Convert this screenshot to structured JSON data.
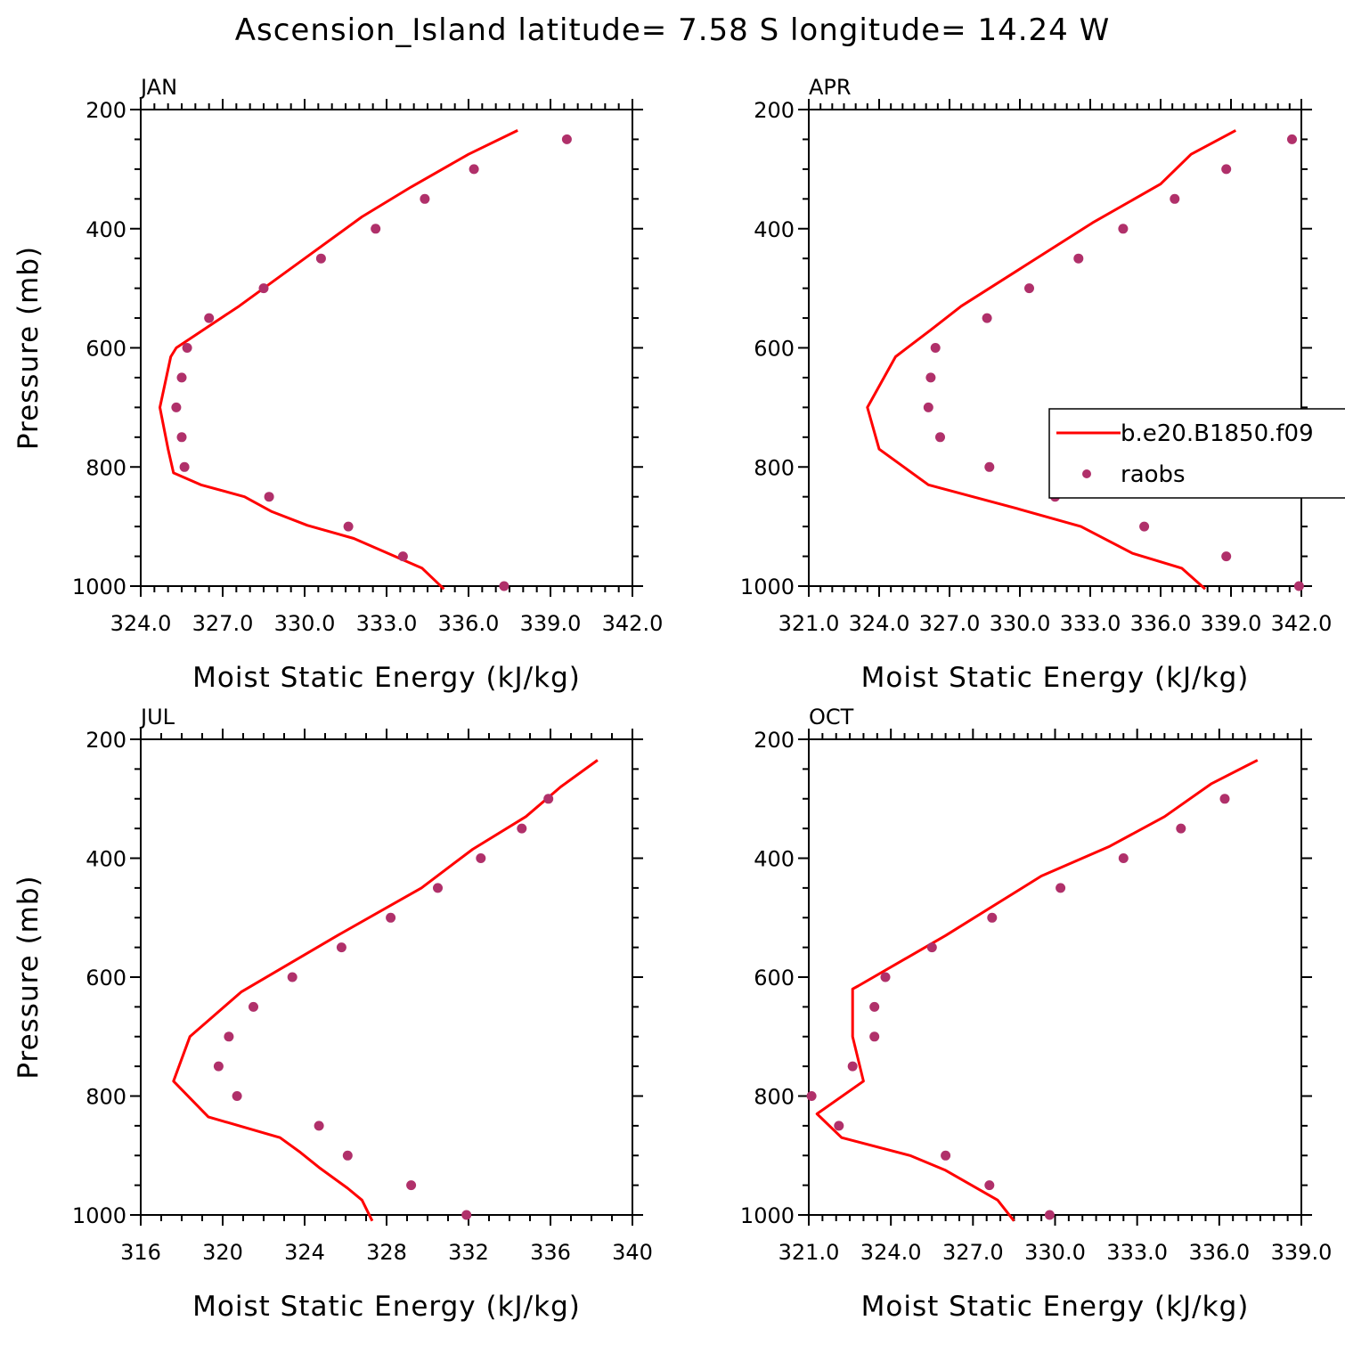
{
  "title": "Ascension_Island  latitude= 7.58 S longitude= 14.24 W",
  "colors": {
    "model": "#ff0000",
    "obs": "#b0306a"
  },
  "legend": {
    "model_label": "b.e20.B1850.f09",
    "obs_label": "raobs",
    "placement": "right of APR panel, overlapping"
  },
  "chart_data": [
    {
      "type": "line",
      "panel": "JAN",
      "xlabel": "Moist Static Energy (kJ/kg)",
      "ylabel": "Pressure (mb)",
      "xlim": [
        324,
        342
      ],
      "ylim": [
        1000,
        200
      ],
      "xticks": [
        "324.0",
        "327.0",
        "330.0",
        "333.0",
        "336.0",
        "339.0",
        "342.0"
      ],
      "yticks": [
        "200",
        "400",
        "600",
        "800",
        "1000"
      ],
      "series": [
        {
          "name": "b.e20.B1850.f09",
          "kind": "line",
          "x": [
            335.1,
            334.3,
            331.8,
            330.1,
            328.8,
            327.8,
            326.2,
            325.2,
            325.0,
            324.7,
            325.1,
            325.3,
            327.6,
            330.0,
            332.1,
            333.9,
            336.0,
            337.8
          ],
          "y": [
            1005,
            970,
            920,
            898,
            875,
            850,
            830,
            810,
            770,
            700,
            615,
            600,
            530,
            450,
            380,
            330,
            275,
            235
          ]
        },
        {
          "name": "raobs",
          "kind": "scatter",
          "x": [
            337.3,
            333.6,
            331.6,
            328.7,
            325.6,
            325.5,
            325.3,
            325.5,
            325.7,
            326.5,
            328.5,
            330.6,
            332.6,
            334.4,
            336.2,
            339.6
          ],
          "y": [
            1000,
            950,
            900,
            850,
            800,
            750,
            700,
            650,
            600,
            550,
            500,
            450,
            400,
            350,
            300,
            250
          ]
        }
      ]
    },
    {
      "type": "line",
      "panel": "APR",
      "xlabel": "Moist Static Energy (kJ/kg)",
      "ylabel": "",
      "xlim": [
        321,
        342
      ],
      "ylim": [
        1000,
        200
      ],
      "xticks": [
        "321.0",
        "324.0",
        "327.0",
        "330.0",
        "333.0",
        "336.0",
        "339.0",
        "342.0"
      ],
      "yticks": [
        "200",
        "400",
        "600",
        "800",
        "1000"
      ],
      "series": [
        {
          "name": "b.e20.B1850.f09",
          "kind": "line",
          "x": [
            337.9,
            336.9,
            334.8,
            332.6,
            329.9,
            328.0,
            326.1,
            324.0,
            323.5,
            324.7,
            326.2,
            327.5,
            330.3,
            333.1,
            336.0,
            337.3,
            339.2
          ],
          "y": [
            1005,
            970,
            945,
            900,
            870,
            850,
            830,
            770,
            700,
            615,
            570,
            530,
            460,
            390,
            325,
            275,
            235
          ]
        },
        {
          "name": "raobs",
          "kind": "scatter",
          "x": [
            341.9,
            338.8,
            335.3,
            331.5,
            328.7,
            326.6,
            326.1,
            326.2,
            326.4,
            328.6,
            330.4,
            332.5,
            334.4,
            336.6,
            338.8,
            341.6
          ],
          "y": [
            1000,
            950,
            900,
            850,
            800,
            750,
            700,
            650,
            600,
            550,
            500,
            450,
            400,
            350,
            300,
            250
          ]
        }
      ]
    },
    {
      "type": "line",
      "panel": "JUL",
      "xlabel": "Moist Static Energy (kJ/kg)",
      "ylabel": "Pressure (mb)",
      "xlim": [
        316,
        340
      ],
      "ylim": [
        1000,
        200
      ],
      "xticks": [
        "316",
        "320",
        "324",
        "328",
        "332",
        "336",
        "340"
      ],
      "yticks": [
        "200",
        "400",
        "600",
        "800",
        "1000"
      ],
      "series": [
        {
          "name": "b.e20.B1850.f09",
          "kind": "line",
          "x": [
            327.3,
            326.8,
            326.1,
            324.7,
            323.8,
            322.8,
            319.3,
            317.6,
            318.4,
            320.9,
            325.6,
            329.7,
            332.2,
            334.8,
            336.5,
            338.3
          ],
          "y": [
            1010,
            975,
            955,
            920,
            895,
            870,
            835,
            775,
            700,
            625,
            530,
            450,
            385,
            330,
            280,
            235
          ]
        },
        {
          "name": "raobs",
          "kind": "scatter",
          "x": [
            331.9,
            329.2,
            326.1,
            324.7,
            320.7,
            319.8,
            320.3,
            321.5,
            323.4,
            325.8,
            328.2,
            330.5,
            332.6,
            334.6,
            335.9
          ],
          "y": [
            1000,
            950,
            900,
            850,
            800,
            750,
            700,
            650,
            600,
            550,
            500,
            450,
            400,
            350,
            300
          ]
        }
      ]
    },
    {
      "type": "line",
      "panel": "OCT",
      "xlabel": "Moist Static Energy (kJ/kg)",
      "ylabel": "",
      "xlim": [
        321,
        339
      ],
      "ylim": [
        1000,
        200
      ],
      "xticks": [
        "321.0",
        "324.0",
        "327.0",
        "330.0",
        "333.0",
        "336.0",
        "339.0"
      ],
      "yticks": [
        "200",
        "400",
        "600",
        "800",
        "1000"
      ],
      "series": [
        {
          "name": "b.e20.B1850.f09",
          "kind": "line",
          "x": [
            328.5,
            327.9,
            326.0,
            324.7,
            322.2,
            321.3,
            323.0,
            322.6,
            322.6,
            322.8,
            326.0,
            329.5,
            332.0,
            334.0,
            335.7,
            337.4
          ],
          "y": [
            1010,
            975,
            925,
            900,
            870,
            830,
            775,
            700,
            620,
            615,
            530,
            430,
            380,
            330,
            275,
            235
          ]
        },
        {
          "name": "raobs",
          "kind": "scatter",
          "x": [
            329.8,
            327.6,
            326.0,
            322.1,
            321.1,
            322.6,
            323.4,
            323.4,
            323.8,
            325.5,
            327.7,
            330.2,
            332.5,
            334.6,
            336.2
          ],
          "y": [
            1000,
            950,
            900,
            850,
            800,
            750,
            700,
            650,
            600,
            550,
            500,
            450,
            400,
            350,
            300
          ]
        }
      ]
    }
  ]
}
